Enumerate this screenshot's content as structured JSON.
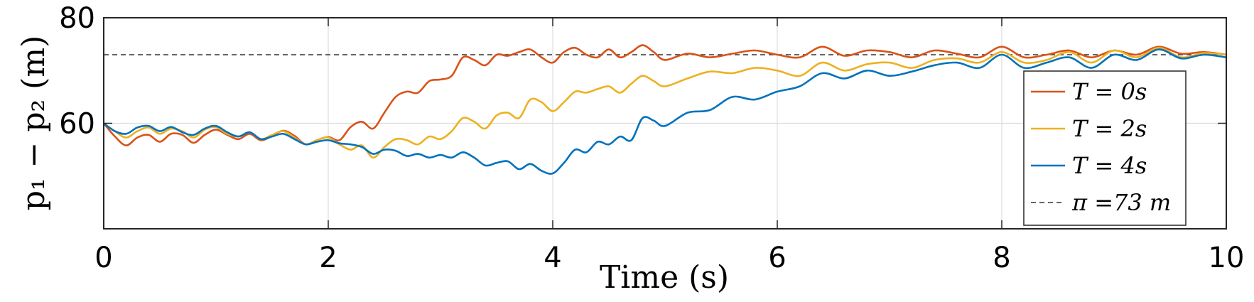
{
  "chart_data": {
    "type": "line",
    "title": "",
    "xlabel": "Time (s)",
    "ylabel": "p₁ − p₂ (m)",
    "xlim": [
      0,
      10
    ],
    "ylim": [
      40,
      80
    ],
    "xticks": [
      "0",
      "2",
      "4",
      "6",
      "8",
      "10"
    ],
    "yticks": [
      "60",
      "80"
    ],
    "grid": true,
    "legend_position": "right",
    "reference_line": {
      "label": "π =73 m",
      "value": 73,
      "color": "#333333",
      "style": "dashed"
    },
    "series": [
      {
        "name": "T = 0s",
        "color": "#D95319",
        "x": [
          0,
          0.1,
          0.2,
          0.3,
          0.4,
          0.5,
          0.6,
          0.7,
          0.8,
          0.9,
          1.0,
          1.1,
          1.2,
          1.3,
          1.4,
          1.5,
          1.6,
          1.7,
          1.8,
          1.9,
          2.0,
          2.1,
          2.2,
          2.3,
          2.4,
          2.5,
          2.6,
          2.7,
          2.8,
          2.9,
          3.0,
          3.1,
          3.2,
          3.3,
          3.4,
          3.5,
          3.6,
          3.7,
          3.8,
          3.9,
          4.0,
          4.1,
          4.2,
          4.3,
          4.4,
          4.5,
          4.6,
          4.7,
          4.8,
          4.9,
          5.0,
          5.2,
          5.4,
          5.6,
          5.8,
          6.0,
          6.2,
          6.4,
          6.6,
          6.8,
          7.0,
          7.2,
          7.4,
          7.6,
          7.8,
          8.0,
          8.2,
          8.4,
          8.6,
          8.8,
          9.0,
          9.2,
          9.4,
          9.6,
          9.8,
          10.0
        ],
        "y": [
          60,
          57.5,
          55.8,
          57.3,
          57.8,
          56.5,
          58.0,
          57.8,
          56.3,
          57.8,
          58.8,
          57.8,
          57.0,
          58.0,
          56.8,
          57.6,
          58.6,
          57.6,
          56.0,
          56.8,
          57.4,
          56.8,
          59.3,
          60.3,
          59.0,
          62.0,
          65.0,
          66.0,
          65.8,
          68.0,
          68.3,
          69.0,
          72.5,
          72.0,
          71.0,
          73.0,
          72.8,
          73.5,
          74.0,
          72.5,
          71.5,
          73.5,
          74.3,
          73.0,
          72.5,
          74.0,
          72.5,
          73.5,
          74.8,
          73.5,
          72.0,
          73.2,
          72.5,
          73.2,
          73.8,
          73.0,
          72.5,
          74.5,
          72.8,
          73.8,
          73.5,
          72.5,
          73.8,
          73.2,
          72.5,
          74.5,
          72.5,
          73.0,
          73.8,
          72.5,
          73.8,
          73.0,
          74.5,
          73.2,
          73.5,
          73.0
        ]
      },
      {
        "name": "T = 2s",
        "color": "#EDB120",
        "x": [
          0,
          0.1,
          0.2,
          0.3,
          0.4,
          0.5,
          0.6,
          0.7,
          0.8,
          0.9,
          1.0,
          1.1,
          1.2,
          1.3,
          1.4,
          1.5,
          1.6,
          1.7,
          1.8,
          1.9,
          2.0,
          2.1,
          2.2,
          2.3,
          2.4,
          2.5,
          2.6,
          2.7,
          2.8,
          2.9,
          3.0,
          3.1,
          3.2,
          3.3,
          3.4,
          3.5,
          3.6,
          3.7,
          3.8,
          3.9,
          4.0,
          4.1,
          4.2,
          4.3,
          4.4,
          4.5,
          4.6,
          4.7,
          4.8,
          4.9,
          5.0,
          5.2,
          5.4,
          5.6,
          5.8,
          6.0,
          6.2,
          6.4,
          6.6,
          6.8,
          7.0,
          7.2,
          7.4,
          7.6,
          7.8,
          8.0,
          8.2,
          8.4,
          8.6,
          8.8,
          9.0,
          9.2,
          9.4,
          9.6,
          9.8,
          10.0
        ],
        "y": [
          60,
          58.5,
          57.3,
          58.5,
          59.2,
          58.0,
          59.0,
          58.5,
          57.3,
          58.8,
          59.3,
          58.0,
          57.5,
          58.3,
          57.0,
          57.8,
          58.5,
          57.3,
          56.0,
          56.8,
          57.3,
          56.0,
          55.0,
          55.8,
          53.5,
          55.5,
          57.0,
          56.8,
          56.0,
          57.5,
          57.0,
          58.5,
          61.0,
          60.3,
          59.0,
          61.5,
          62.0,
          61.0,
          64.5,
          64.0,
          62.3,
          64.0,
          66.0,
          65.8,
          66.5,
          67.0,
          65.8,
          67.5,
          69.0,
          68.0,
          67.0,
          68.5,
          69.8,
          69.5,
          70.5,
          70.0,
          69.0,
          71.5,
          70.0,
          71.2,
          71.5,
          70.5,
          72.0,
          72.3,
          71.5,
          73.5,
          71.5,
          72.0,
          73.5,
          71.5,
          73.8,
          72.5,
          74.3,
          72.5,
          73.3,
          73.0
        ]
      },
      {
        "name": "T = 4s",
        "color": "#0072BD",
        "x": [
          0,
          0.1,
          0.2,
          0.3,
          0.4,
          0.5,
          0.6,
          0.7,
          0.8,
          0.9,
          1.0,
          1.1,
          1.2,
          1.3,
          1.4,
          1.5,
          1.6,
          1.7,
          1.8,
          1.9,
          2.0,
          2.1,
          2.2,
          2.3,
          2.4,
          2.5,
          2.6,
          2.7,
          2.8,
          2.9,
          3.0,
          3.1,
          3.2,
          3.3,
          3.4,
          3.5,
          3.6,
          3.7,
          3.8,
          3.9,
          4.0,
          4.1,
          4.2,
          4.3,
          4.4,
          4.5,
          4.6,
          4.7,
          4.8,
          4.9,
          5.0,
          5.2,
          5.4,
          5.6,
          5.8,
          6.0,
          6.2,
          6.4,
          6.6,
          6.8,
          7.0,
          7.2,
          7.4,
          7.6,
          7.8,
          8.0,
          8.2,
          8.4,
          8.6,
          8.8,
          9.0,
          9.2,
          9.4,
          9.6,
          9.8,
          10.0
        ],
        "y": [
          60,
          58.5,
          58.0,
          59.2,
          59.5,
          58.5,
          59.3,
          58.3,
          57.8,
          59.0,
          59.5,
          58.3,
          57.5,
          58.3,
          57.0,
          57.5,
          58.0,
          57.0,
          56.0,
          56.5,
          56.8,
          56.2,
          56.0,
          55.5,
          54.2,
          55.0,
          54.8,
          53.8,
          54.2,
          53.5,
          54.0,
          53.5,
          54.5,
          53.5,
          52.0,
          52.5,
          52.8,
          51.3,
          52.3,
          51.0,
          50.5,
          52.5,
          55.0,
          54.5,
          56.5,
          56.0,
          57.5,
          56.8,
          61.0,
          60.5,
          59.5,
          62.0,
          62.5,
          65.0,
          64.5,
          66.0,
          67.0,
          69.5,
          68.5,
          70.0,
          69.0,
          69.8,
          71.0,
          71.5,
          70.5,
          73.0,
          70.5,
          71.5,
          72.5,
          70.5,
          73.0,
          72.0,
          74.0,
          72.3,
          73.0,
          72.5
        ]
      }
    ]
  }
}
